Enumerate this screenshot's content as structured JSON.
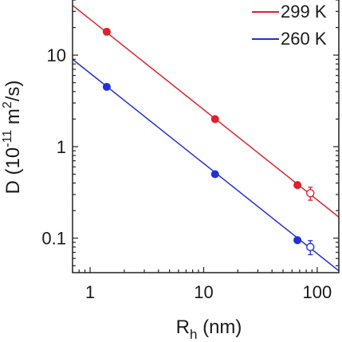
{
  "chart_data": {
    "type": "scatter",
    "xscale": "log",
    "yscale": "log",
    "xlim": [
      0.7,
      155
    ],
    "ylim": [
      0.042,
      40
    ],
    "xlabel": {
      "main": "R",
      "sub": "h",
      "unit": " (nm)"
    },
    "ylabel": {
      "main": "D (10",
      "sup1": "-11",
      "mid": " m",
      "sup2": "2",
      "end": "/s)"
    },
    "xticks": [
      {
        "value": 1,
        "label": "1"
      },
      {
        "value": 10,
        "label": "10"
      },
      {
        "value": 100,
        "label": "100"
      }
    ],
    "yticks": [
      {
        "value": 0.1,
        "label": "0.1"
      },
      {
        "value": 1,
        "label": "1"
      },
      {
        "value": 10,
        "label": "10"
      }
    ],
    "legend_position": "top-right",
    "series": [
      {
        "name": "299 K",
        "color": "#e0202a",
        "filled_points": [
          {
            "x": 1.4,
            "y": 18
          },
          {
            "x": 12.6,
            "y": 2.0
          },
          {
            "x": 67,
            "y": 0.38
          }
        ],
        "open_points": [
          {
            "x": 87,
            "y": 0.31,
            "err": 0.05
          }
        ],
        "fit_line": [
          {
            "x": 0.7,
            "y": 35
          },
          {
            "x": 155,
            "y": 0.17
          }
        ]
      },
      {
        "name": "260 K",
        "color": "#2230d8",
        "filled_points": [
          {
            "x": 1.4,
            "y": 4.5
          },
          {
            "x": 12.6,
            "y": 0.5
          },
          {
            "x": 67,
            "y": 0.095
          }
        ],
        "open_points": [
          {
            "x": 87,
            "y": 0.08,
            "err": 0.014
          }
        ],
        "fit_line": [
          {
            "x": 0.7,
            "y": 9.0
          },
          {
            "x": 155,
            "y": 0.044
          }
        ]
      }
    ]
  }
}
